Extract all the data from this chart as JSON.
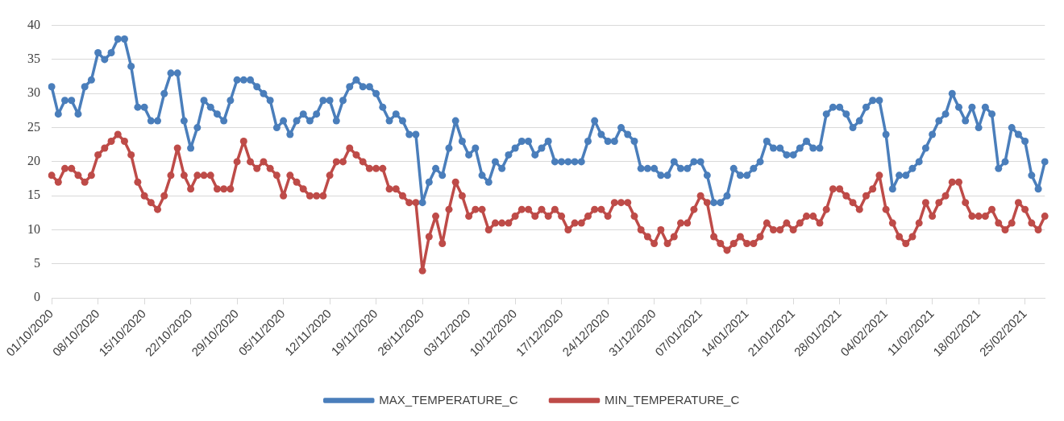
{
  "chart_data": {
    "type": "line",
    "categories": [
      "01/10/2020",
      null,
      null,
      null,
      null,
      null,
      null,
      "08/10/2020",
      null,
      null,
      null,
      null,
      null,
      null,
      "15/10/2020",
      null,
      null,
      null,
      null,
      null,
      null,
      "22/10/2020",
      null,
      null,
      null,
      null,
      null,
      null,
      "29/10/2020",
      null,
      null,
      null,
      null,
      null,
      null,
      "05/11/2020",
      null,
      null,
      null,
      null,
      null,
      null,
      "12/11/2020",
      null,
      null,
      null,
      null,
      null,
      null,
      "19/11/2020",
      null,
      null,
      null,
      null,
      null,
      null,
      "26/11/2020",
      null,
      null,
      null,
      null,
      null,
      null,
      "03/12/2020",
      null,
      null,
      null,
      null,
      null,
      null,
      "10/12/2020",
      null,
      null,
      null,
      null,
      null,
      null,
      "17/12/2020",
      null,
      null,
      null,
      null,
      null,
      null,
      "24/12/2020",
      null,
      null,
      null,
      null,
      null,
      null,
      "31/12/2020",
      null,
      null,
      null,
      null,
      null,
      null,
      "07/01/2021",
      null,
      null,
      null,
      null,
      null,
      null,
      "14/01/2021",
      null,
      null,
      null,
      null,
      null,
      null,
      "21/01/2021",
      null,
      null,
      null,
      null,
      null,
      null,
      "28/01/2021",
      null,
      null,
      null,
      null,
      null,
      null,
      "04/02/2021",
      null,
      null,
      null,
      null,
      null,
      null,
      "11/02/2021",
      null,
      null,
      null,
      null,
      null,
      null,
      "18/02/2021",
      null,
      null,
      null,
      null,
      null,
      null,
      "25/02/2021",
      null,
      null,
      null
    ],
    "series": [
      {
        "name": "MAX_TEMPERATURE_C",
        "color": "#4a7ebb",
        "values": [
          31,
          27,
          29,
          29,
          27,
          31,
          32,
          36,
          35,
          36,
          38,
          38,
          34,
          28,
          28,
          26,
          26,
          30,
          33,
          33,
          26,
          22,
          25,
          29,
          28,
          27,
          26,
          29,
          32,
          32,
          32,
          31,
          30,
          29,
          25,
          26,
          24,
          26,
          27,
          26,
          27,
          29,
          29,
          26,
          29,
          31,
          32,
          31,
          31,
          30,
          28,
          26,
          27,
          26,
          24,
          24,
          14,
          17,
          19,
          18,
          22,
          26,
          23,
          21,
          22,
          18,
          17,
          20,
          19,
          21,
          22,
          23,
          23,
          21,
          22,
          23,
          20,
          20,
          20,
          20,
          20,
          23,
          26,
          24,
          23,
          23,
          25,
          24,
          23,
          19,
          19,
          19,
          18,
          18,
          20,
          19,
          19,
          20,
          20,
          18,
          14,
          14,
          15,
          19,
          18,
          18,
          19,
          20,
          23,
          22,
          22,
          21,
          21,
          22,
          23,
          22,
          22,
          27,
          28,
          28,
          27,
          25,
          26,
          28,
          29,
          29,
          24,
          16,
          18,
          18,
          19,
          20,
          22,
          24,
          26,
          27,
          30,
          28,
          26,
          28,
          25,
          28,
          27,
          19,
          20,
          25,
          24,
          23,
          18,
          16,
          20
        ]
      },
      {
        "name": "MIN_TEMPERATURE_C",
        "color": "#be4b48",
        "values": [
          18,
          17,
          19,
          19,
          18,
          17,
          18,
          21,
          22,
          23,
          24,
          23,
          21,
          17,
          15,
          14,
          13,
          15,
          18,
          22,
          18,
          16,
          18,
          18,
          18,
          16,
          16,
          16,
          20,
          23,
          20,
          19,
          20,
          19,
          18,
          15,
          18,
          17,
          16,
          15,
          15,
          15,
          18,
          20,
          20,
          22,
          21,
          20,
          19,
          19,
          19,
          16,
          16,
          15,
          14,
          14,
          4,
          9,
          12,
          8,
          13,
          17,
          15,
          12,
          13,
          13,
          10,
          11,
          11,
          11,
          12,
          13,
          13,
          12,
          13,
          12,
          13,
          12,
          10,
          11,
          11,
          12,
          13,
          13,
          12,
          14,
          14,
          14,
          12,
          10,
          9,
          8,
          10,
          8,
          9,
          11,
          11,
          13,
          15,
          14,
          9,
          8,
          7,
          8,
          9,
          8,
          8,
          9,
          11,
          10,
          10,
          11,
          10,
          11,
          12,
          12,
          11,
          13,
          16,
          16,
          15,
          14,
          13,
          15,
          16,
          18,
          13,
          11,
          9,
          8,
          9,
          11,
          14,
          12,
          14,
          15,
          17,
          17,
          14,
          12,
          12,
          12,
          13,
          11,
          10,
          11,
          14,
          13,
          11,
          10,
          12
        ]
      }
    ],
    "ylim": [
      0,
      40
    ],
    "yticks": [
      0,
      5,
      10,
      15,
      20,
      25,
      30,
      35,
      40
    ],
    "grid": "y",
    "legend": "bottom",
    "marker": "circle",
    "line_style": "solid"
  }
}
